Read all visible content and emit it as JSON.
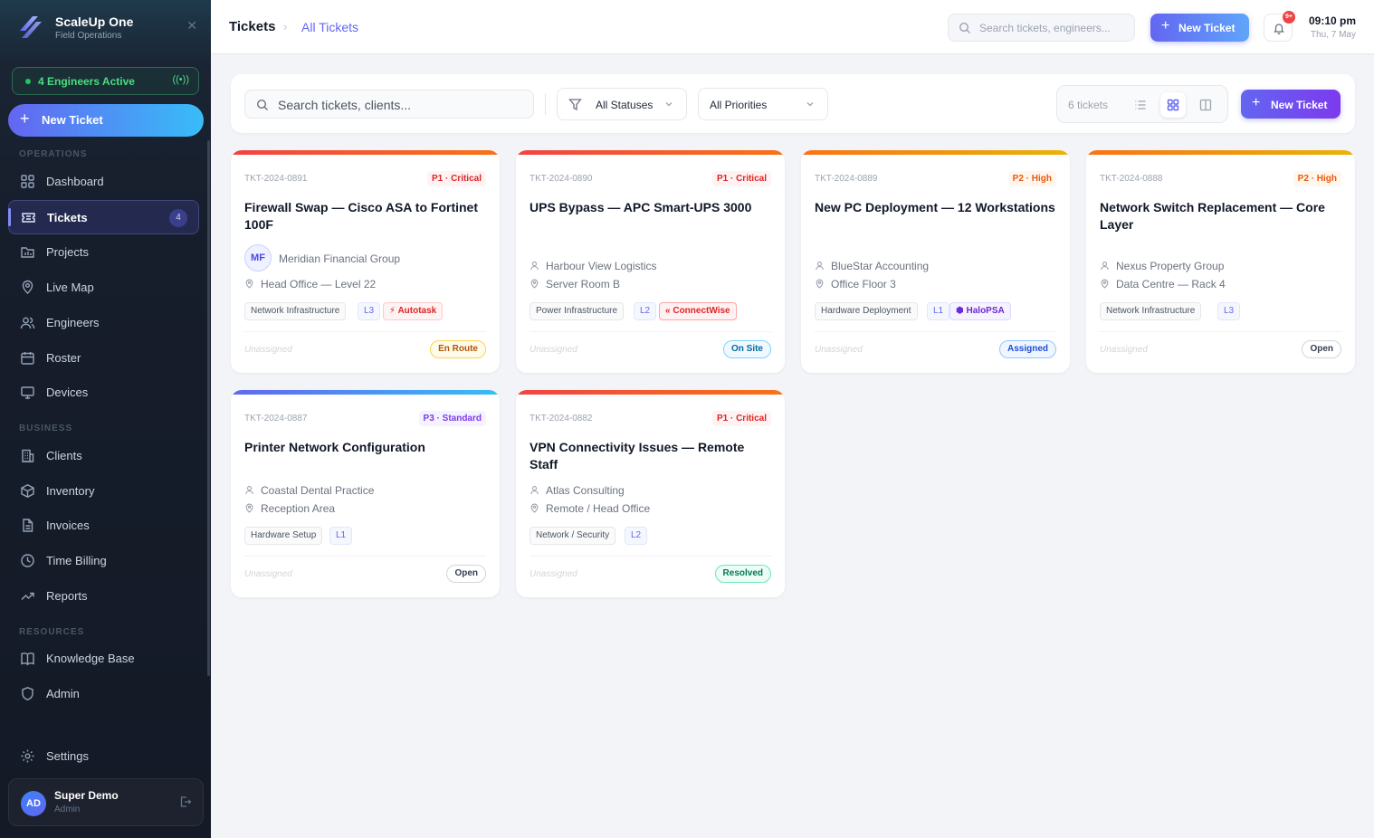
{
  "brand": {
    "name": "ScaleUp One",
    "subtitle": "Field Operations"
  },
  "sidebar": {
    "engineers_active": "4 Engineers Active",
    "new_ticket_label": "New Ticket",
    "sections": {
      "operations": "OPERATIONS",
      "business": "BUSINESS",
      "resources": "RESOURCES"
    },
    "items": [
      {
        "label": "Dashboard",
        "icon": "grid-icon"
      },
      {
        "label": "Tickets",
        "icon": "ticket-icon",
        "badge": "4",
        "active": true
      },
      {
        "label": "Projects",
        "icon": "folder-icon"
      },
      {
        "label": "Live Map",
        "icon": "map-pin-icon"
      },
      {
        "label": "Engineers",
        "icon": "users-icon"
      },
      {
        "label": "Roster",
        "icon": "calendar-icon"
      },
      {
        "label": "Devices",
        "icon": "monitor-icon"
      },
      {
        "label": "Clients",
        "icon": "building-icon"
      },
      {
        "label": "Inventory",
        "icon": "box-icon"
      },
      {
        "label": "Invoices",
        "icon": "file-icon"
      },
      {
        "label": "Time Billing",
        "icon": "clock-icon"
      },
      {
        "label": "Reports",
        "icon": "trend-icon"
      },
      {
        "label": "Knowledge Base",
        "icon": "book-icon"
      },
      {
        "label": "Admin",
        "icon": "shield-icon"
      },
      {
        "label": "Settings",
        "icon": "gear-icon"
      }
    ],
    "user": {
      "initials": "AD",
      "name": "Super Demo",
      "role": "Admin"
    }
  },
  "header": {
    "breadcrumb_root": "Tickets",
    "breadcrumb_current": "All Tickets",
    "search_placeholder": "Search tickets, engineers...",
    "new_ticket_label": "New Ticket",
    "notifications_badge": "9+",
    "time": "09:10 pm",
    "date": "Thu, 7 May"
  },
  "filters": {
    "search_placeholder": "Search tickets, clients...",
    "status_label": "All Statuses",
    "priority_label": "All Priorities",
    "ticket_count": "6 tickets",
    "new_ticket_label": "New Ticket"
  },
  "colors": {
    "accent": "#6366f1",
    "critical": "#dc2626",
    "high": "#ea580c",
    "standard": "#7c3aed"
  },
  "tickets": [
    {
      "id": "TKT-2024-0891",
      "priority": "P1 · Critical",
      "priority_level": "critical",
      "title": "Firewall Swap — Cisco ASA to Fortinet 100F",
      "client_initials": "MF",
      "client": "Meridian Financial Group",
      "location": "Head Office — Level 22",
      "category": "Network Infrastructure",
      "level": "L3",
      "psa": "Autotask",
      "assignee": "Unassigned",
      "status": "En Route"
    },
    {
      "id": "TKT-2024-0890",
      "priority": "P1 · Critical",
      "priority_level": "critical",
      "title": "UPS Bypass — APC Smart-UPS 3000",
      "client": "Harbour View Logistics",
      "location": "Server Room B",
      "category": "Power Infrastructure",
      "level": "L2",
      "psa": "ConnectWise",
      "assignee": "Unassigned",
      "status": "On Site"
    },
    {
      "id": "TKT-2024-0889",
      "priority": "P2 · High",
      "priority_level": "high",
      "title": "New PC Deployment — 12 Workstations",
      "client": "BlueStar Accounting",
      "location": "Office Floor 3",
      "category": "Hardware Deployment",
      "level": "L1",
      "psa": "HaloPSA",
      "assignee": "Unassigned",
      "status": "Assigned"
    },
    {
      "id": "TKT-2024-0888",
      "priority": "P2 · High",
      "priority_level": "high",
      "title": "Network Switch Replacement — Core Layer",
      "client": "Nexus Property Group",
      "location": "Data Centre — Rack 4",
      "category": "Network Infrastructure",
      "level": "L3",
      "assignee": "Unassigned",
      "status": "Open"
    },
    {
      "id": "TKT-2024-0887",
      "priority": "P3 · Standard",
      "priority_level": "standard",
      "title": "Printer Network Configuration",
      "client": "Coastal Dental Practice",
      "location": "Reception Area",
      "category": "Hardware Setup",
      "level": "L1",
      "assignee": "Unassigned",
      "status": "Open"
    },
    {
      "id": "TKT-2024-0882",
      "priority": "P1 · Critical",
      "priority_level": "critical",
      "title": "VPN Connectivity Issues — Remote Staff",
      "client": "Atlas Consulting",
      "location": "Remote / Head Office",
      "category": "Network / Security",
      "level": "L2",
      "assignee": "Unassigned",
      "status": "Resolved"
    }
  ]
}
